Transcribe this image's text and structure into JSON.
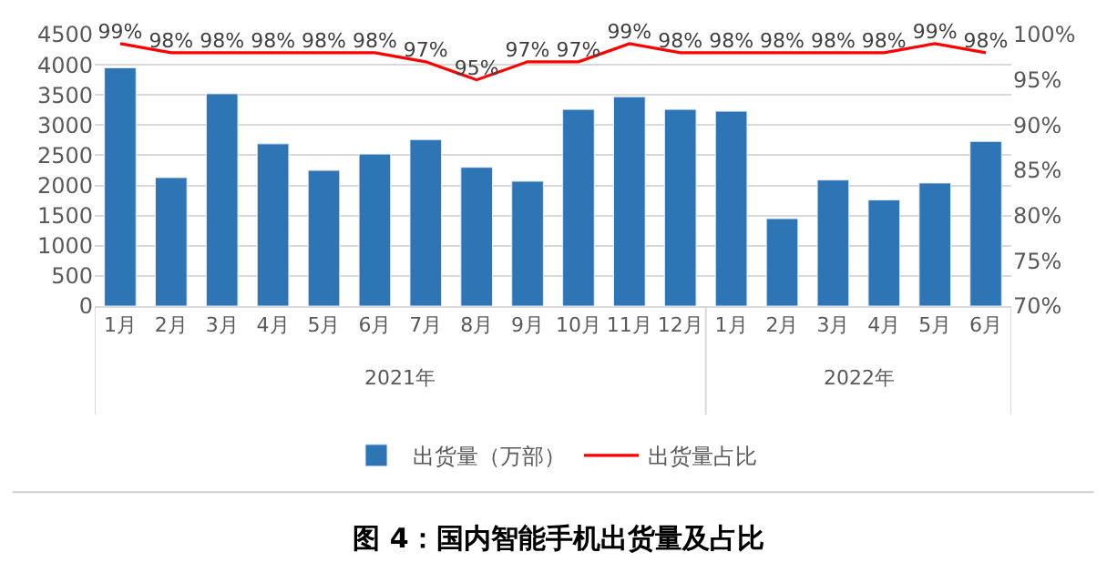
{
  "chart_data": {
    "type": "bar",
    "title": "图 4：国内智能手机出货量及占比",
    "categories": [
      "1月",
      "2月",
      "3月",
      "4月",
      "5月",
      "6月",
      "7月",
      "8月",
      "9月",
      "10月",
      "11月",
      "12月",
      "1月",
      "2月",
      "3月",
      "4月",
      "5月",
      "6月"
    ],
    "series": [
      {
        "name": "出货量（万部）",
        "color": "#2e75b6",
        "values": [
          3950,
          2130,
          3520,
          2690,
          2250,
          2520,
          2760,
          2300,
          2070,
          3260,
          3470,
          3260,
          3230,
          1450,
          2090,
          1760,
          2040,
          2730
        ]
      },
      {
        "name": "出货量占比",
        "type": "line",
        "axis": "y2",
        "color": "#ff0000",
        "marker": "none",
        "values": [
          99,
          98,
          98,
          98,
          98,
          98,
          97,
          95,
          97,
          97,
          99,
          98,
          98,
          98,
          98,
          98,
          99,
          98
        ],
        "value_labels": [
          "99%",
          "98%",
          "98%",
          "98%",
          "98%",
          "98%",
          "97%",
          "95%",
          "97%",
          "97%",
          "99%",
          "98%",
          "98%",
          "98%",
          "98%",
          "98%",
          "99%",
          "98%"
        ]
      }
    ],
    "annotations": [
      "2021年",
      "2022年"
    ],
    "ylim": [
      0,
      4500
    ],
    "yticks": [
      0,
      500,
      1000,
      1500,
      2000,
      2500,
      3000,
      3500,
      4000,
      4500
    ],
    "y2lim": [
      70,
      100
    ],
    "y2ticks": [
      {
        "value": 70,
        "label": "70%"
      },
      {
        "value": 75,
        "label": "75%"
      },
      {
        "value": 80,
        "label": "80%"
      },
      {
        "value": 85,
        "label": "85%"
      },
      {
        "value": 90,
        "label": "90%"
      },
      {
        "value": 95,
        "label": "95%"
      },
      {
        "value": 100,
        "label": "100%"
      }
    ],
    "grid": "y",
    "legend": "bottom"
  }
}
